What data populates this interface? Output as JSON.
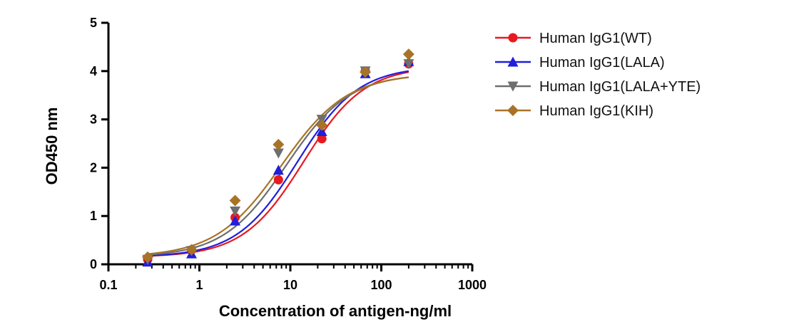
{
  "chart_data": {
    "type": "scatter",
    "title": "",
    "xlabel": "Concentration of antigen-ng/ml",
    "ylabel": "OD450 nm",
    "xscale": "log",
    "xlim": [
      0.1,
      1000
    ],
    "ylim": [
      0,
      5
    ],
    "x_ticks": [
      0.1,
      1,
      10,
      100,
      1000
    ],
    "x_tick_labels": [
      "0.1",
      "1",
      "10",
      "100",
      "1000"
    ],
    "y_ticks": [
      0,
      1,
      2,
      3,
      4,
      5
    ],
    "y_tick_labels": [
      "0",
      "1",
      "2",
      "3",
      "4",
      "5"
    ],
    "grid": false,
    "legend_position": "top-right",
    "x": [
      0.27,
      0.82,
      2.47,
      7.4,
      22.2,
      66.7,
      200
    ],
    "series": [
      {
        "name": "Human IgG1(WT)",
        "color": "#e8191f",
        "marker": "circle",
        "values": [
          0.1,
          0.3,
          0.97,
          1.75,
          2.6,
          4.0,
          4.15
        ],
        "fit": {
          "bottom": 0.15,
          "top": 4.1,
          "ec50": 14,
          "hill": 1.3
        }
      },
      {
        "name": "Human IgG1(LALA)",
        "color": "#1f1fdc",
        "marker": "triangle-up",
        "values": [
          0.05,
          0.22,
          0.9,
          1.95,
          2.75,
          3.95,
          4.2
        ],
        "fit": {
          "bottom": 0.15,
          "top": 4.1,
          "ec50": 12,
          "hill": 1.3
        }
      },
      {
        "name": "Human IgG1(LALA+YTE)",
        "color": "#6e6e6e",
        "marker": "triangle-down",
        "values": [
          0.1,
          0.28,
          1.1,
          2.3,
          3.0,
          4.0,
          4.15
        ],
        "fit": {
          "bottom": 0.15,
          "top": 3.95,
          "ec50": 9,
          "hill": 1.25
        }
      },
      {
        "name": "Human IgG1(KIH)",
        "color": "#a87327",
        "marker": "diamond",
        "values": [
          0.15,
          0.3,
          1.32,
          2.48,
          2.88,
          3.98,
          4.35
        ],
        "fit": {
          "bottom": 0.15,
          "top": 3.95,
          "ec50": 8,
          "hill": 1.2
        }
      }
    ]
  }
}
